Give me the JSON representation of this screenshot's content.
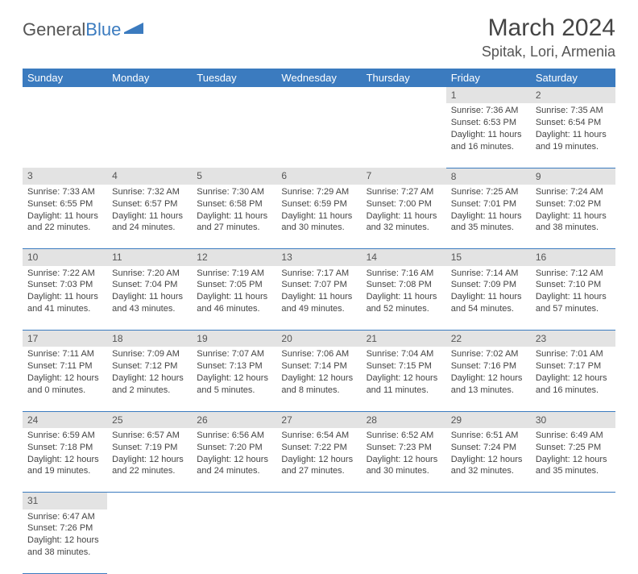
{
  "logo": {
    "text1": "General",
    "text2": "Blue"
  },
  "title": "March 2024",
  "location": "Spitak, Lori, Armenia",
  "colors": {
    "header_bg": "#3b7bbf",
    "header_text": "#ffffff",
    "daynum_bg": "#e3e3e3",
    "border": "#3b7bbf",
    "text": "#444444",
    "background": "#ffffff"
  },
  "weekdays": [
    "Sunday",
    "Monday",
    "Tuesday",
    "Wednesday",
    "Thursday",
    "Friday",
    "Saturday"
  ],
  "weeks": [
    [
      null,
      null,
      null,
      null,
      null,
      {
        "n": "1",
        "sr": "Sunrise: 7:36 AM",
        "ss": "Sunset: 6:53 PM",
        "d1": "Daylight: 11 hours",
        "d2": "and 16 minutes."
      },
      {
        "n": "2",
        "sr": "Sunrise: 7:35 AM",
        "ss": "Sunset: 6:54 PM",
        "d1": "Daylight: 11 hours",
        "d2": "and 19 minutes."
      }
    ],
    [
      {
        "n": "3",
        "sr": "Sunrise: 7:33 AM",
        "ss": "Sunset: 6:55 PM",
        "d1": "Daylight: 11 hours",
        "d2": "and 22 minutes."
      },
      {
        "n": "4",
        "sr": "Sunrise: 7:32 AM",
        "ss": "Sunset: 6:57 PM",
        "d1": "Daylight: 11 hours",
        "d2": "and 24 minutes."
      },
      {
        "n": "5",
        "sr": "Sunrise: 7:30 AM",
        "ss": "Sunset: 6:58 PM",
        "d1": "Daylight: 11 hours",
        "d2": "and 27 minutes."
      },
      {
        "n": "6",
        "sr": "Sunrise: 7:29 AM",
        "ss": "Sunset: 6:59 PM",
        "d1": "Daylight: 11 hours",
        "d2": "and 30 minutes."
      },
      {
        "n": "7",
        "sr": "Sunrise: 7:27 AM",
        "ss": "Sunset: 7:00 PM",
        "d1": "Daylight: 11 hours",
        "d2": "and 32 minutes."
      },
      {
        "n": "8",
        "sr": "Sunrise: 7:25 AM",
        "ss": "Sunset: 7:01 PM",
        "d1": "Daylight: 11 hours",
        "d2": "and 35 minutes."
      },
      {
        "n": "9",
        "sr": "Sunrise: 7:24 AM",
        "ss": "Sunset: 7:02 PM",
        "d1": "Daylight: 11 hours",
        "d2": "and 38 minutes."
      }
    ],
    [
      {
        "n": "10",
        "sr": "Sunrise: 7:22 AM",
        "ss": "Sunset: 7:03 PM",
        "d1": "Daylight: 11 hours",
        "d2": "and 41 minutes."
      },
      {
        "n": "11",
        "sr": "Sunrise: 7:20 AM",
        "ss": "Sunset: 7:04 PM",
        "d1": "Daylight: 11 hours",
        "d2": "and 43 minutes."
      },
      {
        "n": "12",
        "sr": "Sunrise: 7:19 AM",
        "ss": "Sunset: 7:05 PM",
        "d1": "Daylight: 11 hours",
        "d2": "and 46 minutes."
      },
      {
        "n": "13",
        "sr": "Sunrise: 7:17 AM",
        "ss": "Sunset: 7:07 PM",
        "d1": "Daylight: 11 hours",
        "d2": "and 49 minutes."
      },
      {
        "n": "14",
        "sr": "Sunrise: 7:16 AM",
        "ss": "Sunset: 7:08 PM",
        "d1": "Daylight: 11 hours",
        "d2": "and 52 minutes."
      },
      {
        "n": "15",
        "sr": "Sunrise: 7:14 AM",
        "ss": "Sunset: 7:09 PM",
        "d1": "Daylight: 11 hours",
        "d2": "and 54 minutes."
      },
      {
        "n": "16",
        "sr": "Sunrise: 7:12 AM",
        "ss": "Sunset: 7:10 PM",
        "d1": "Daylight: 11 hours",
        "d2": "and 57 minutes."
      }
    ],
    [
      {
        "n": "17",
        "sr": "Sunrise: 7:11 AM",
        "ss": "Sunset: 7:11 PM",
        "d1": "Daylight: 12 hours",
        "d2": "and 0 minutes."
      },
      {
        "n": "18",
        "sr": "Sunrise: 7:09 AM",
        "ss": "Sunset: 7:12 PM",
        "d1": "Daylight: 12 hours",
        "d2": "and 2 minutes."
      },
      {
        "n": "19",
        "sr": "Sunrise: 7:07 AM",
        "ss": "Sunset: 7:13 PM",
        "d1": "Daylight: 12 hours",
        "d2": "and 5 minutes."
      },
      {
        "n": "20",
        "sr": "Sunrise: 7:06 AM",
        "ss": "Sunset: 7:14 PM",
        "d1": "Daylight: 12 hours",
        "d2": "and 8 minutes."
      },
      {
        "n": "21",
        "sr": "Sunrise: 7:04 AM",
        "ss": "Sunset: 7:15 PM",
        "d1": "Daylight: 12 hours",
        "d2": "and 11 minutes."
      },
      {
        "n": "22",
        "sr": "Sunrise: 7:02 AM",
        "ss": "Sunset: 7:16 PM",
        "d1": "Daylight: 12 hours",
        "d2": "and 13 minutes."
      },
      {
        "n": "23",
        "sr": "Sunrise: 7:01 AM",
        "ss": "Sunset: 7:17 PM",
        "d1": "Daylight: 12 hours",
        "d2": "and 16 minutes."
      }
    ],
    [
      {
        "n": "24",
        "sr": "Sunrise: 6:59 AM",
        "ss": "Sunset: 7:18 PM",
        "d1": "Daylight: 12 hours",
        "d2": "and 19 minutes."
      },
      {
        "n": "25",
        "sr": "Sunrise: 6:57 AM",
        "ss": "Sunset: 7:19 PM",
        "d1": "Daylight: 12 hours",
        "d2": "and 22 minutes."
      },
      {
        "n": "26",
        "sr": "Sunrise: 6:56 AM",
        "ss": "Sunset: 7:20 PM",
        "d1": "Daylight: 12 hours",
        "d2": "and 24 minutes."
      },
      {
        "n": "27",
        "sr": "Sunrise: 6:54 AM",
        "ss": "Sunset: 7:22 PM",
        "d1": "Daylight: 12 hours",
        "d2": "and 27 minutes."
      },
      {
        "n": "28",
        "sr": "Sunrise: 6:52 AM",
        "ss": "Sunset: 7:23 PM",
        "d1": "Daylight: 12 hours",
        "d2": "and 30 minutes."
      },
      {
        "n": "29",
        "sr": "Sunrise: 6:51 AM",
        "ss": "Sunset: 7:24 PM",
        "d1": "Daylight: 12 hours",
        "d2": "and 32 minutes."
      },
      {
        "n": "30",
        "sr": "Sunrise: 6:49 AM",
        "ss": "Sunset: 7:25 PM",
        "d1": "Daylight: 12 hours",
        "d2": "and 35 minutes."
      }
    ],
    [
      {
        "n": "31",
        "sr": "Sunrise: 6:47 AM",
        "ss": "Sunset: 7:26 PM",
        "d1": "Daylight: 12 hours",
        "d2": "and 38 minutes."
      },
      null,
      null,
      null,
      null,
      null,
      null
    ]
  ]
}
